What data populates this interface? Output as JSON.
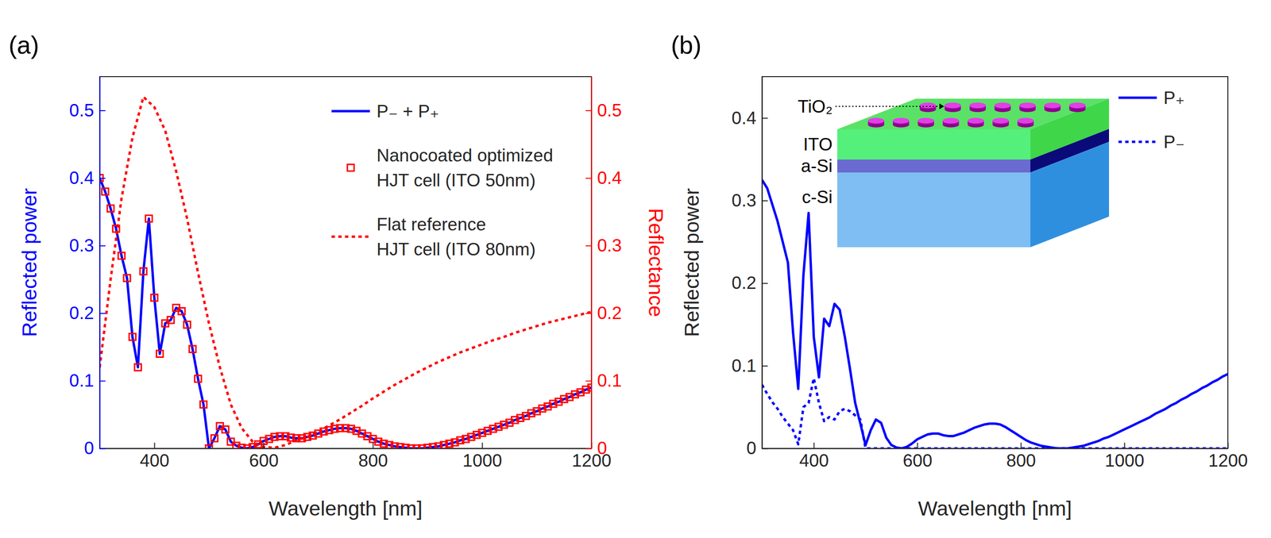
{
  "chart_data": [
    {
      "type": "line",
      "title": "(a)",
      "x_label": "Wavelength [nm]",
      "y_label": "Reflected power",
      "y2_label": "Reflectance",
      "xlim": [
        300,
        1200
      ],
      "xticks": [
        400,
        600,
        800,
        1000,
        1200
      ],
      "ylim": [
        0,
        0.55
      ],
      "yticks": [
        0,
        0.1,
        0.2,
        0.3,
        0.4,
        0.5
      ],
      "y2lim": [
        0,
        0.55
      ],
      "y2ticks": [
        0,
        0.1,
        0.2,
        0.3,
        0.4,
        0.5
      ],
      "legend": "top-right",
      "x": [
        300,
        310,
        320,
        330,
        340,
        350,
        360,
        370,
        380,
        390,
        400,
        410,
        420,
        430,
        440,
        450,
        460,
        470,
        480,
        490,
        500,
        510,
        520,
        530,
        540,
        550,
        560,
        570,
        580,
        590,
        600,
        610,
        620,
        630,
        640,
        650,
        660,
        670,
        680,
        690,
        700,
        710,
        720,
        730,
        740,
        750,
        760,
        770,
        780,
        790,
        800,
        810,
        820,
        830,
        840,
        850,
        860,
        870,
        880,
        890,
        900,
        910,
        920,
        930,
        940,
        950,
        960,
        970,
        980,
        990,
        1000,
        1010,
        1020,
        1030,
        1040,
        1050,
        1060,
        1070,
        1080,
        1090,
        1100,
        1110,
        1120,
        1130,
        1140,
        1150,
        1160,
        1170,
        1180,
        1190,
        1200
      ],
      "series": [
        {
          "name": "P₋ + P₊",
          "type": "line",
          "color": "#0000ff",
          "line_style": "solid",
          "values": [
            0.4,
            0.38,
            0.355,
            0.325,
            0.285,
            0.252,
            0.165,
            0.12,
            0.262,
            0.34,
            0.223,
            0.14,
            0.185,
            0.19,
            0.208,
            0.203,
            0.183,
            0.147,
            0.103,
            0.065,
            0,
            0.015,
            0.033,
            0.028,
            0.01,
            0.004,
            0.001,
            0,
            0.002,
            0.006,
            0.011,
            0.014,
            0.017,
            0.018,
            0.018,
            0.016,
            0.015,
            0.015,
            0.017,
            0.019,
            0.022,
            0.025,
            0.027,
            0.029,
            0.03,
            0.03,
            0.029,
            0.026,
            0.022,
            0.018,
            0.014,
            0.01,
            0.007,
            0.005,
            0.003,
            0.002,
            0.001,
            0,
            0,
            0,
            0.001,
            0.002,
            0.003,
            0.005,
            0.007,
            0.009,
            0.012,
            0.014,
            0.017,
            0.02,
            0.023,
            0.026,
            0.029,
            0.032,
            0.035,
            0.038,
            0.042,
            0.045,
            0.048,
            0.052,
            0.055,
            0.059,
            0.062,
            0.066,
            0.069,
            0.073,
            0.076,
            0.08,
            0.083,
            0.087,
            0.09
          ]
        },
        {
          "name": "Nanocoated optimized\nHJT cell (ITO 50nm)",
          "type": "scatter",
          "marker": "square",
          "color": "#ff0000",
          "axis": "y2",
          "values": [
            0.4,
            0.38,
            0.355,
            0.325,
            0.285,
            0.252,
            0.165,
            0.12,
            0.262,
            0.34,
            0.223,
            0.14,
            0.185,
            0.19,
            0.208,
            0.203,
            0.183,
            0.147,
            0.103,
            0.065,
            0,
            0.015,
            0.033,
            0.028,
            0.01,
            0.004,
            0.001,
            0,
            0.002,
            0.006,
            0.011,
            0.014,
            0.017,
            0.018,
            0.018,
            0.016,
            0.015,
            0.015,
            0.017,
            0.019,
            0.022,
            0.025,
            0.027,
            0.029,
            0.03,
            0.03,
            0.029,
            0.026,
            0.022,
            0.018,
            0.014,
            0.01,
            0.007,
            0.005,
            0.003,
            0.002,
            0.001,
            0,
            0,
            0,
            0.001,
            0.002,
            0.003,
            0.005,
            0.007,
            0.009,
            0.012,
            0.014,
            0.017,
            0.02,
            0.023,
            0.026,
            0.029,
            0.032,
            0.035,
            0.038,
            0.042,
            0.045,
            0.048,
            0.052,
            0.055,
            0.059,
            0.062,
            0.066,
            0.069,
            0.073,
            0.076,
            0.08,
            0.083,
            0.087,
            0.09
          ]
        },
        {
          "name": "Flat reference\nHJT cell (ITO 80nm)",
          "type": "line",
          "color": "#ff0000",
          "line_style": "dotted",
          "axis": "y2",
          "x": [
            300,
            320,
            340,
            360,
            380,
            400,
            420,
            440,
            460,
            480,
            500,
            520,
            540,
            560,
            580,
            600,
            620,
            640,
            660,
            680,
            700,
            720,
            740,
            760,
            780,
            800,
            820,
            840,
            860,
            880,
            900,
            920,
            940,
            960,
            980,
            1000,
            1020,
            1040,
            1060,
            1080,
            1100,
            1120,
            1140,
            1160,
            1180,
            1200
          ],
          "values": [
            0.12,
            0.25,
            0.37,
            0.46,
            0.52,
            0.505,
            0.47,
            0.41,
            0.34,
            0.26,
            0.185,
            0.12,
            0.065,
            0.03,
            0.01,
            0.002,
            0.001,
            0.005,
            0.012,
            0.017,
            0.025,
            0.034,
            0.043,
            0.053,
            0.063,
            0.074,
            0.084,
            0.094,
            0.103,
            0.112,
            0.12,
            0.128,
            0.135,
            0.142,
            0.148,
            0.154,
            0.16,
            0.165,
            0.171,
            0.176,
            0.181,
            0.186,
            0.19,
            0.194,
            0.198,
            0.202
          ]
        }
      ]
    },
    {
      "type": "line",
      "title": "(b)",
      "x_label": "Wavelength [nm]",
      "y_label": "Reflected power",
      "xlim": [
        300,
        1200
      ],
      "xticks": [
        400,
        600,
        800,
        1000,
        1200
      ],
      "ylim": [
        0,
        0.45
      ],
      "yticks": [
        0,
        0.1,
        0.2,
        0.3,
        0.4
      ],
      "legend": "top-right",
      "annotations": [
        "TiO₂",
        "ITO",
        "a-Si",
        "c-Si"
      ],
      "x": [
        300,
        310,
        320,
        330,
        340,
        350,
        360,
        370,
        380,
        390,
        400,
        410,
        420,
        430,
        440,
        450,
        460,
        470,
        480,
        490,
        500,
        510,
        520,
        530,
        540,
        550,
        560,
        570,
        580,
        590,
        600,
        610,
        620,
        630,
        640,
        650,
        660,
        670,
        680,
        690,
        700,
        710,
        720,
        730,
        740,
        750,
        760,
        770,
        780,
        790,
        800,
        810,
        820,
        830,
        840,
        850,
        860,
        870,
        880,
        890,
        900,
        910,
        920,
        930,
        940,
        950,
        960,
        970,
        980,
        990,
        1000,
        1010,
        1020,
        1030,
        1040,
        1050,
        1060,
        1070,
        1080,
        1090,
        1100,
        1110,
        1120,
        1130,
        1140,
        1150,
        1160,
        1170,
        1180,
        1190,
        1200
      ],
      "series": [
        {
          "name": "P₊",
          "color": "#0000ff",
          "line_style": "solid",
          "values": [
            0.325,
            0.315,
            0.295,
            0.275,
            0.25,
            0.225,
            0.14,
            0.072,
            0.21,
            0.285,
            0.135,
            0.086,
            0.157,
            0.148,
            0.175,
            0.168,
            0.135,
            0.096,
            0.055,
            0.03,
            0.004,
            0.022,
            0.035,
            0.031,
            0.013,
            0.004,
            0.001,
            0,
            0.002,
            0.006,
            0.011,
            0.014,
            0.017,
            0.018,
            0.018,
            0.016,
            0.015,
            0.015,
            0.017,
            0.019,
            0.022,
            0.025,
            0.027,
            0.029,
            0.03,
            0.03,
            0.029,
            0.026,
            0.022,
            0.018,
            0.014,
            0.01,
            0.007,
            0.005,
            0.003,
            0.002,
            0.001,
            0,
            0,
            0,
            0.001,
            0.002,
            0.003,
            0.005,
            0.007,
            0.009,
            0.012,
            0.014,
            0.017,
            0.02,
            0.023,
            0.026,
            0.029,
            0.032,
            0.035,
            0.038,
            0.042,
            0.045,
            0.048,
            0.052,
            0.055,
            0.059,
            0.062,
            0.066,
            0.069,
            0.073,
            0.076,
            0.08,
            0.083,
            0.087,
            0.09
          ]
        },
        {
          "name": "P₋",
          "color": "#0000ff",
          "line_style": "dotted",
          "values": [
            0.077,
            0.066,
            0.056,
            0.048,
            0.038,
            0.03,
            0.022,
            0.005,
            0.05,
            0.055,
            0.085,
            0.055,
            0.033,
            0.038,
            0.035,
            0.045,
            0.048,
            0.045,
            0.04,
            0.035,
            0,
            0,
            0,
            0,
            0,
            0,
            0,
            0,
            0,
            0,
            0,
            0,
            0,
            0,
            0,
            0,
            0,
            0,
            0,
            0,
            0,
            0,
            0,
            0,
            0,
            0,
            0,
            0,
            0,
            0,
            0,
            0,
            0,
            0,
            0,
            0,
            0,
            0,
            0,
            0,
            0,
            0,
            0,
            0,
            0,
            0,
            0,
            0,
            0,
            0,
            0,
            0,
            0,
            0,
            0,
            0,
            0,
            0,
            0,
            0,
            0,
            0,
            0,
            0,
            0,
            0,
            0,
            0,
            0,
            0,
            0
          ]
        }
      ]
    }
  ]
}
